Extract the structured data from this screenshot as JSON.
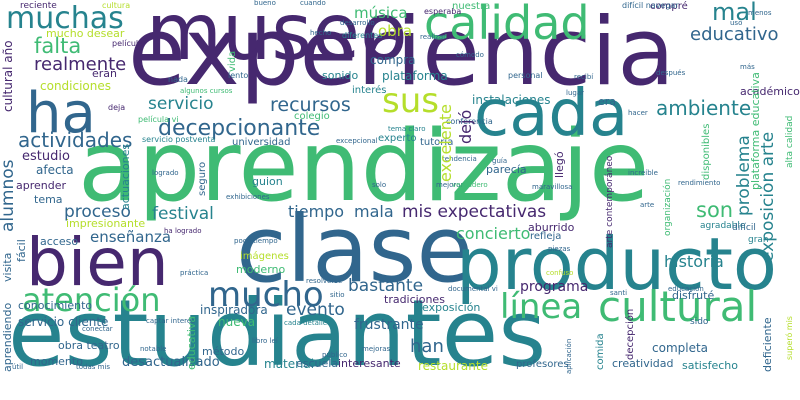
{
  "palette": {
    "dark_purple": "#46286f",
    "blue": "#31668d",
    "teal": "#26838e",
    "green": "#3fbb74",
    "light_green": "#7fd34e",
    "yellow_green": "#b5de2b",
    "background": "#ffffff"
  },
  "words": {
    "estudiantes": "estudiantes",
    "experiencia": "experiencia",
    "aprendizaje": "aprendizaje",
    "clase": "clase",
    "museo": "museo",
    "producto": "producto",
    "bien": "bien",
    "cada": "cada",
    "calidad": "calidad",
    "ha": "ha",
    "cultural": "cultural",
    "atencion": "atención",
    "mucho": "mucho",
    "muchas": "muchas",
    "linea": "línea",
    "sus": "sus",
    "educativo": "educativo",
    "mal": "mal",
    "mis_expectativas": "mis expectativas",
    "decepcionante": "decepcionante",
    "recursos": "recursos",
    "falta": "falta",
    "realmente": "realmente",
    "ambiente": "ambiente",
    "servicio": "servicio",
    "actividades": "actividades",
    "proceso": "proceso",
    "festival": "festival",
    "tiempo": "tiempo",
    "mala": "mala",
    "son": "son",
    "historia": "historia",
    "concierto": "concierto",
    "bastante": "bastante",
    "evento": "evento",
    "han": "han",
    "programa": "programa",
    "instalaciones": "instalaciones",
    "musica": "música",
    "obra": "obra",
    "plataforma": "plataforma",
    "compra": "compra",
    "alumnos": "alumnos",
    "excelente": "excelente",
    "exposicion_arte": "exposición arte",
    "problema": "problema",
    "dejo": "dejó",
    "ensenanza": "enseñanza",
    "estudio": "estudio",
    "afecta": "afecta",
    "aprender": "aprender",
    "tema": "tema",
    "impresionante": "impresionante",
    "condiciones": "condiciones",
    "mucho_desear": "mucho desear",
    "reciente": "reciente",
    "cultural_ano": "cultural año",
    "sonido": "sonido",
    "interes": "interés",
    "colegio": "colegio",
    "universidad": "universidad",
    "experto": "experto",
    "tutoria": "tutoría",
    "parecia": "parecía",
    "guion": "guion",
    "seguro": "seguro",
    "aburrido": "aburrido",
    "refleja": "refleja",
    "moderno": "moderno",
    "imagenes": "imágenes",
    "conocimiento": "conocimiento",
    "inspiradora": "inspiradora",
    "nueva": "nueva",
    "servicio_cliente": "servicio cliente",
    "frustrante": "frustrante",
    "exposicion": "exposición",
    "tradiciones": "tradiciones",
    "disfrute": "disfruté",
    "sido": "sido",
    "metodo": "método",
    "educativa": "educativa",
    "obra_teatro": "obra teatro",
    "momento": "momento",
    "desactualizado": "desactualizado",
    "material": "material",
    "escuela": "escuela",
    "interesante": "interesante",
    "restaurante": "restaurante",
    "profesores": "profesores",
    "creatividad": "creatividad",
    "satisfecho": "satisfecho",
    "completa": "completa",
    "comida": "comida",
    "deficiente": "deficiente",
    "decepcion": "decepción",
    "aprendiendo": "aprendiendo",
    "visita": "visita",
    "facil": "fácil",
    "acceso": "acceso",
    "llego": "llegó",
    "academico": "académico",
    "alta_calidad": "alta calidad",
    "plataforma_educativa": "plataforma educativa",
    "disponibles": "disponibles",
    "nuestra": "nuestra",
    "compre": "compré",
    "era": "era",
    "agradable": "agradable",
    "dificil": "difícil",
    "gran": "gran",
    "superó_mis": "superó mis",
    "arte_contemporaneo": "arte contemporáneo",
    "organizacion": "organización",
    "pelicula_vi": "película vi",
    "servicio_postventa": "servicio postventa",
    "actuaciones": "actuaciones",
    "conferencia": "conferencia",
    "dificil_navegar": "difícil navegar",
    "personal": "personal",
    "lento": "lento",
    "nada": "nada",
    "vida": "vida",
    "esperaba": "esperaba",
    "diferentes": "diferentes",
    "eran": "eran",
    "deja": "deja",
    "cultura": "cultura",
    "pelicula": "película",
    "tema_claro": "tema claro",
    "exceptional": "excepcional",
    "poco_tiempo": "poco tiempo",
    "ha_logrado": "ha logrado",
    "exhibiciones": "exhibiciones",
    "maravillosa": "maravillosa",
    "mejorar": "mejorar",
    "documental": "documental vi",
    "aplicacion": "aplicación",
    "cada_detalle": "cada detalle",
    "util": "útil",
    "todas_mis": "todas mis",
    "mejoras": "mejoras",
    "publico": "público",
    "libro_lei": "libro leí",
    "notable": "notable",
    "educacion": "educación",
    "rendimiento": "rendimiento",
    "despues": "después",
    "increible": "increíble",
    "verdadero": "verdadero",
    "guia": "guía",
    "santi": "santi",
    "arte": "arte",
    "solo": "solo",
    "lugar": "lugar",
    "hacer": "hacer",
    "desarrollo": "desarrollo",
    "uso": "uso",
    "comodo": "cómodo",
    "conectar": "conectar",
    "captar_interes": "captar interés",
    "practica": "práctica",
    "resolverse": "resolverse",
    "sitio": "sitio",
    "confuso": "confuso",
    "piezas": "piezas",
    "hecho": "hecho",
    "algunos_cursos": "algunos cursos",
    "realizar": "realizar",
    "bueno": "bueno",
    "cuando": "cuando",
    "recibi": "recibí",
    "menos": "menos",
    "tendencia": "tendencia",
    "logrado": "logrado",
    "mas": "más"
  }
}
